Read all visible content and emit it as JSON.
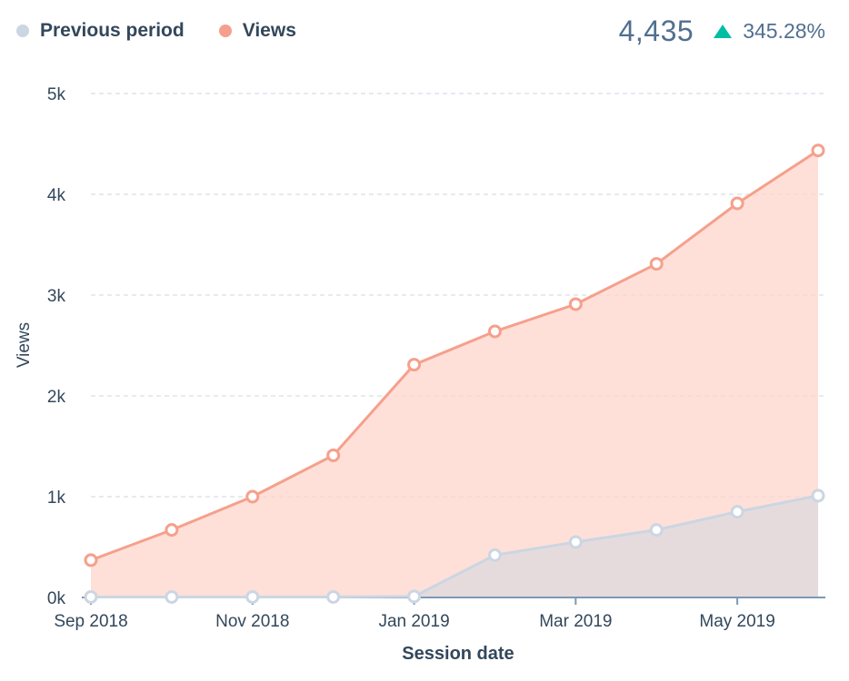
{
  "legend": [
    {
      "label": "Previous period",
      "color": "#cbd6e2"
    },
    {
      "label": "Views",
      "color": "#f5a08c"
    }
  ],
  "summary": {
    "total": "4,435",
    "change": "345.28%",
    "change_icon": "up-triangle-icon",
    "change_color": "#00bda5"
  },
  "chart_data": {
    "type": "area",
    "xlabel": "Session date",
    "ylabel": "Views",
    "x": [
      "2018-09",
      "2018-10",
      "2018-11",
      "2018-12",
      "2019-01",
      "2019-02",
      "2019-03",
      "2019-04",
      "2019-05",
      "2019-06"
    ],
    "x_tick_labels": [
      "Sep 2018",
      "Nov 2018",
      "Jan 2019",
      "Mar 2019",
      "May 2019"
    ],
    "y_tick_labels": [
      "0k",
      "1k",
      "2k",
      "3k",
      "4k",
      "5k"
    ],
    "ylim": [
      0,
      5000
    ],
    "grid": true,
    "legend_position": "top-left",
    "series": [
      {
        "name": "Previous period",
        "color": "#cbd6e2",
        "fill": "rgba(203,214,226,0.5)",
        "values": [
          5,
          5,
          5,
          5,
          10,
          420,
          550,
          670,
          850,
          1010
        ]
      },
      {
        "name": "Views",
        "color": "#f5a08c",
        "fill": "rgba(254,214,204,0.75)",
        "values": [
          370,
          670,
          1000,
          1410,
          2310,
          2640,
          2910,
          3310,
          3910,
          4435
        ]
      }
    ]
  }
}
